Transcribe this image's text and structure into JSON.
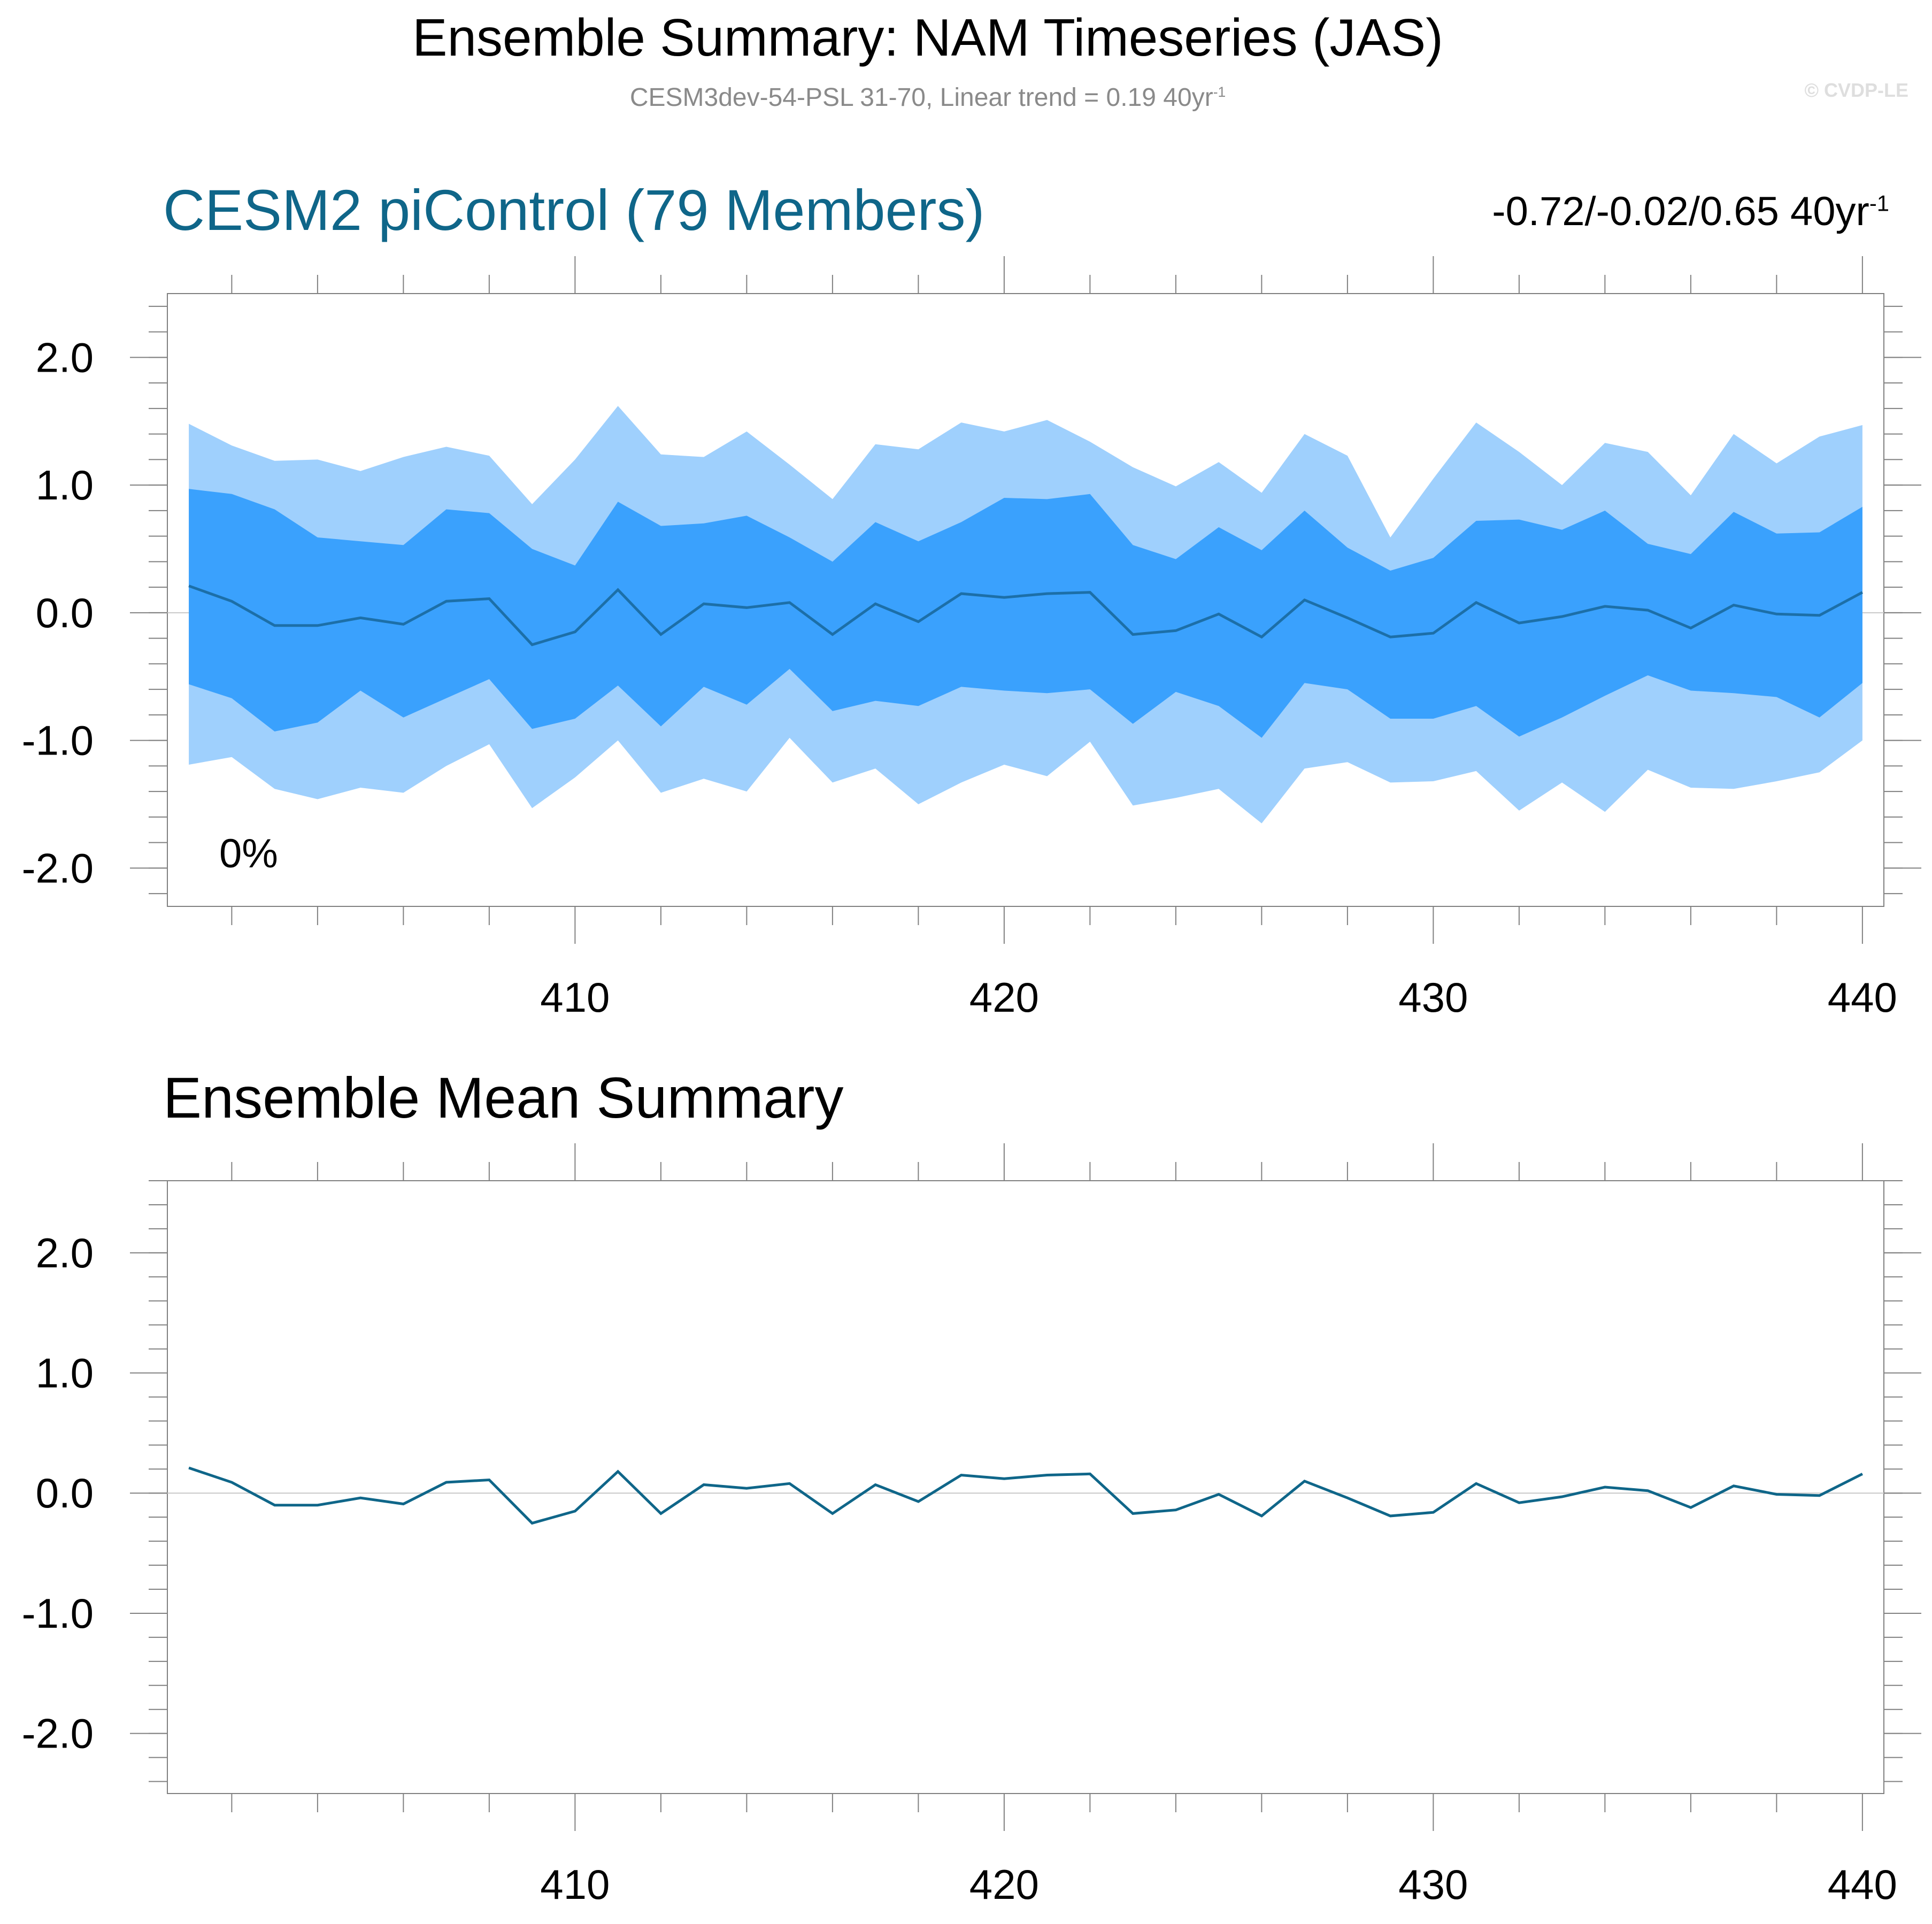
{
  "header": {
    "title": "Ensemble Summary: NAM Timeseries (JAS)",
    "subtitle": "CESM3dev-54-PSL 31-70, Linear trend = 0.19 40yr",
    "subtitle_sup": "-1",
    "watermark": "© CVDP-LE"
  },
  "colors": {
    "outer_band": "#9fd0fd",
    "inner_band": "#3aa1fd",
    "mean_line": "#1c6fa8",
    "panel2_line": "#0f6689",
    "panel1_title": "#0f6689",
    "axis": "#808080"
  },
  "chart_data": [
    {
      "type": "area",
      "title": "CESM2 piControl (79 Members)",
      "trend_label": "-0.72/-0.02/0.65 40yr",
      "trend_label_sup": "-1",
      "annotation": "0%",
      "xlim": [
        400.5,
        440.5
      ],
      "ylim": [
        -2.3,
        2.5
      ],
      "yticks": [
        2.0,
        1.0,
        0.0,
        -1.0,
        -2.0
      ],
      "ytick_labels": [
        "2.0",
        "1.0",
        "0.0",
        "-1.0",
        "-2.0"
      ],
      "xticks": [
        410,
        420,
        430,
        440
      ],
      "xtick_labels": [
        "410",
        "420",
        "430",
        "440"
      ],
      "x": [
        401,
        402,
        403,
        404,
        405,
        406,
        407,
        408,
        409,
        410,
        411,
        412,
        413,
        414,
        415,
        416,
        417,
        418,
        419,
        420,
        421,
        422,
        423,
        424,
        425,
        426,
        427,
        428,
        429,
        430,
        431,
        432,
        433,
        434,
        435,
        436,
        437,
        438,
        439,
        440
      ],
      "series": [
        {
          "role": "outer_upper",
          "values": [
            1.48,
            1.31,
            1.19,
            1.2,
            1.11,
            1.22,
            1.3,
            1.23,
            0.85,
            1.2,
            1.62,
            1.24,
            1.22,
            1.42,
            1.16,
            0.89,
            1.32,
            1.28,
            1.49,
            1.42,
            1.51,
            1.34,
            1.14,
            0.99,
            1.18,
            0.94,
            1.4,
            1.23,
            0.59,
            1.05,
            1.49,
            1.26,
            1.0,
            1.33,
            1.26,
            0.92,
            1.4,
            1.17,
            1.38,
            1.47
          ]
        },
        {
          "role": "inner_upper",
          "values": [
            0.97,
            0.93,
            0.81,
            0.59,
            0.56,
            0.53,
            0.81,
            0.78,
            0.5,
            0.37,
            0.87,
            0.68,
            0.7,
            0.76,
            0.59,
            0.4,
            0.71,
            0.56,
            0.71,
            0.9,
            0.89,
            0.93,
            0.53,
            0.42,
            0.67,
            0.49,
            0.8,
            0.51,
            0.33,
            0.43,
            0.72,
            0.73,
            0.65,
            0.8,
            0.54,
            0.46,
            0.79,
            0.62,
            0.63,
            0.83
          ]
        },
        {
          "role": "mean",
          "values": [
            0.21,
            0.09,
            -0.1,
            -0.1,
            -0.04,
            -0.09,
            0.09,
            0.11,
            -0.25,
            -0.15,
            0.18,
            -0.17,
            0.07,
            0.04,
            0.08,
            -0.17,
            0.07,
            -0.07,
            0.15,
            0.12,
            0.15,
            0.16,
            -0.17,
            -0.14,
            -0.01,
            -0.19,
            0.1,
            -0.04,
            -0.19,
            -0.16,
            0.08,
            -0.08,
            -0.03,
            0.05,
            0.02,
            -0.12,
            0.06,
            -0.01,
            -0.02,
            0.16
          ]
        },
        {
          "role": "inner_lower",
          "values": [
            -0.56,
            -0.67,
            -0.93,
            -0.86,
            -0.61,
            -0.82,
            -0.67,
            -0.52,
            -0.91,
            -0.83,
            -0.57,
            -0.89,
            -0.58,
            -0.72,
            -0.44,
            -0.77,
            -0.69,
            -0.73,
            -0.58,
            -0.61,
            -0.63,
            -0.6,
            -0.87,
            -0.62,
            -0.73,
            -0.98,
            -0.55,
            -0.6,
            -0.83,
            -0.83,
            -0.73,
            -0.97,
            -0.82,
            -0.65,
            -0.49,
            -0.61,
            -0.63,
            -0.66,
            -0.82,
            -0.55
          ]
        },
        {
          "role": "outer_lower",
          "values": [
            -1.19,
            -1.13,
            -1.38,
            -1.46,
            -1.37,
            -1.41,
            -1.2,
            -1.03,
            -1.53,
            -1.29,
            -1.0,
            -1.41,
            -1.3,
            -1.4,
            -0.98,
            -1.33,
            -1.22,
            -1.5,
            -1.33,
            -1.19,
            -1.28,
            -1.01,
            -1.51,
            -1.45,
            -1.38,
            -1.65,
            -1.22,
            -1.17,
            -1.33,
            -1.32,
            -1.24,
            -1.55,
            -1.33,
            -1.56,
            -1.23,
            -1.37,
            -1.38,
            -1.32,
            -1.25,
            -1.0
          ]
        }
      ]
    },
    {
      "type": "line",
      "title": "Ensemble Mean Summary",
      "xlim": [
        400.5,
        440.5
      ],
      "ylim": [
        -2.5,
        2.6
      ],
      "yticks": [
        2.0,
        1.0,
        0.0,
        -1.0,
        -2.0
      ],
      "ytick_labels": [
        "2.0",
        "1.0",
        "0.0",
        "-1.0",
        "-2.0"
      ],
      "xticks": [
        410,
        420,
        430,
        440
      ],
      "xtick_labels": [
        "410",
        "420",
        "430",
        "440"
      ],
      "x": [
        401,
        402,
        403,
        404,
        405,
        406,
        407,
        408,
        409,
        410,
        411,
        412,
        413,
        414,
        415,
        416,
        417,
        418,
        419,
        420,
        421,
        422,
        423,
        424,
        425,
        426,
        427,
        428,
        429,
        430,
        431,
        432,
        433,
        434,
        435,
        436,
        437,
        438,
        439,
        440
      ],
      "series": [
        {
          "values": [
            0.21,
            0.09,
            -0.1,
            -0.1,
            -0.04,
            -0.09,
            0.09,
            0.11,
            -0.25,
            -0.15,
            0.18,
            -0.17,
            0.07,
            0.04,
            0.08,
            -0.17,
            0.07,
            -0.07,
            0.15,
            0.12,
            0.15,
            0.16,
            -0.17,
            -0.14,
            -0.01,
            -0.19,
            0.1,
            -0.04,
            -0.19,
            -0.16,
            0.08,
            -0.08,
            -0.03,
            0.05,
            0.02,
            -0.12,
            0.06,
            -0.01,
            -0.02,
            0.16
          ]
        }
      ]
    }
  ]
}
